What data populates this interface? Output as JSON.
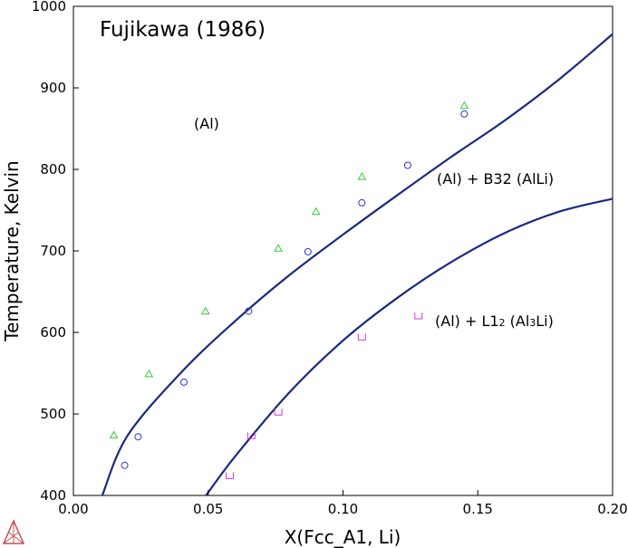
{
  "chart_data": {
    "type": "scatter",
    "title": "Fujikawa (1986)",
    "xlabel": "X(Fcc_A1, Li)",
    "ylabel": "Temperature, Kelvin",
    "xlim": [
      0.0,
      0.2
    ],
    "ylim": [
      400,
      1000
    ],
    "x_ticks": [
      0.0,
      0.05,
      0.1,
      0.15,
      0.2
    ],
    "x_tick_labels": [
      "0.00",
      "0.05",
      "0.10",
      "0.15",
      "0.20"
    ],
    "y_ticks": [
      400,
      500,
      600,
      700,
      800,
      900,
      1000
    ],
    "y_tick_labels": [
      "400",
      "500",
      "600",
      "700",
      "800",
      "900",
      "1000"
    ],
    "grid": false,
    "region_labels": {
      "al": "(Al)",
      "b32_a": "(Al) + B32 (AlLi)",
      "l12_a": "(Al) + L1",
      "l12_b": "2",
      "l12_c": " (Al",
      "l12_d": "3",
      "l12_e": "Li)"
    },
    "lines": [
      {
        "color": "#1a2a80",
        "points": [
          [
            0.0107,
            400
          ],
          [
            0.02,
            473
          ],
          [
            0.04,
            551
          ],
          [
            0.06,
            614
          ],
          [
            0.08,
            670
          ],
          [
            0.1,
            720
          ],
          [
            0.12,
            768
          ],
          [
            0.14,
            815
          ],
          [
            0.16,
            860
          ],
          [
            0.18,
            910
          ],
          [
            0.2,
            966
          ]
        ]
      },
      {
        "color": "#1a2a80",
        "points": [
          [
            0.0492,
            400
          ],
          [
            0.06,
            448
          ],
          [
            0.08,
            526
          ],
          [
            0.1,
            590
          ],
          [
            0.12,
            642
          ],
          [
            0.14,
            686
          ],
          [
            0.16,
            722
          ],
          [
            0.18,
            748
          ],
          [
            0.2,
            764
          ]
        ]
      }
    ],
    "series": [
      {
        "marker": "triangle",
        "color": "#33cc33",
        "points": [
          [
            0.015,
            474
          ],
          [
            0.028,
            549
          ],
          [
            0.049,
            626
          ],
          [
            0.076,
            703
          ],
          [
            0.09,
            748
          ],
          [
            0.107,
            791
          ],
          [
            0.145,
            878
          ]
        ]
      },
      {
        "marker": "circle",
        "color": "#3333cc",
        "points": [
          [
            0.019,
            437
          ],
          [
            0.024,
            472
          ],
          [
            0.041,
            539
          ],
          [
            0.065,
            626
          ],
          [
            0.087,
            699
          ],
          [
            0.107,
            759
          ],
          [
            0.124,
            805
          ],
          [
            0.145,
            868
          ]
        ]
      },
      {
        "marker": "square-open-top",
        "color": "#dd33dd",
        "points": [
          [
            0.058,
            424
          ],
          [
            0.066,
            473
          ],
          [
            0.076,
            502
          ],
          [
            0.107,
            594
          ],
          [
            0.128,
            620
          ]
        ]
      }
    ]
  },
  "logo_icon": "thermo-calc-triangle-logo"
}
